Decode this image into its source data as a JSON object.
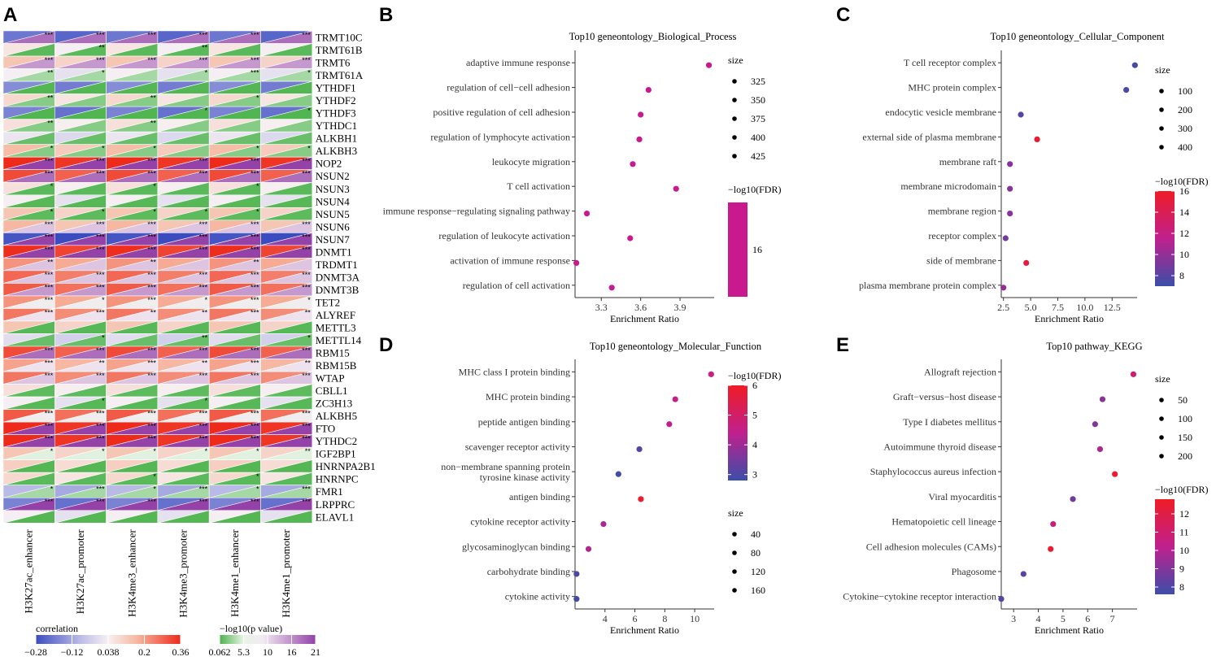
{
  "panels": {
    "A": "A",
    "B": "B",
    "C": "C",
    "D": "D",
    "E": "E"
  },
  "heatmap": {
    "columns": [
      "H3K27ac_enhancer",
      "H3K27ac_promoter",
      "H3K4me3_enhancer",
      "H3K4me3_promoter",
      "H3K4me1_enhancer",
      "H3K4me1_promoter"
    ],
    "genes": [
      "TRMT10C",
      "TRMT61B",
      "TRMT6",
      "TRMT61A",
      "YTHDF1",
      "YTHDF2",
      "YTHDF3",
      "YTHDC1",
      "ALKBH1",
      "ALKBH3",
      "NOP2",
      "NSUN2",
      "NSUN3",
      "NSUN4",
      "NSUN5",
      "NSUN6",
      "NSUN7",
      "DNMT1",
      "TRDMT1",
      "DNMT3A",
      "DNMT3B",
      "TET2",
      "ALYREF",
      "METTL3",
      "METTL14",
      "RBM15",
      "RBM15B",
      "WTAP",
      "CBLL1",
      "ZC3H13",
      "ALKBH5",
      "FTO",
      "YTHDC2",
      "IGF2BP1",
      "HNRNPA2B1",
      "HNRNPC",
      "FMR1",
      "LRPPRC",
      "ELAVL1"
    ],
    "correlation": [
      -0.22,
      0.05,
      0.12,
      0.02,
      -0.18,
      0.08,
      -0.2,
      0.06,
      0.0,
      0.14,
      0.36,
      0.3,
      0.06,
      0.02,
      0.12,
      0.15,
      -0.28,
      0.34,
      0.2,
      0.26,
      0.28,
      0.2,
      0.24,
      0.12,
      -0.02,
      0.3,
      0.18,
      0.24,
      0.06,
      0.02,
      0.28,
      0.36,
      0.36,
      0.12,
      0.1,
      0.08,
      -0.1,
      -0.2,
      0.02
    ],
    "pvalue": [
      18,
      0.5,
      15,
      3,
      0.3,
      2,
      0.2,
      2,
      1,
      2,
      21,
      18,
      0.5,
      0.4,
      0.6,
      12,
      21,
      21,
      12,
      12,
      15,
      8,
      10,
      0.4,
      1,
      18,
      10,
      12,
      0.6,
      0.4,
      8,
      21,
      21,
      5,
      0.3,
      0.5,
      3,
      21,
      0.3
    ],
    "stars": [
      [
        "***",
        "***",
        "***",
        "***",
        "***",
        "***"
      ],
      [
        "",
        "**",
        "",
        "**",
        "",
        ""
      ],
      [
        "***",
        "***",
        "***",
        "***",
        "***",
        "***"
      ],
      [
        "**",
        "*",
        "",
        "*",
        "***",
        "*"
      ],
      [
        "",
        "",
        "",
        "",
        "",
        ""
      ],
      [
        "**",
        "",
        "**",
        "",
        "*",
        ""
      ],
      [
        "",
        "",
        "",
        "*",
        "",
        "*"
      ],
      [
        "**",
        "",
        "**",
        "",
        "",
        ""
      ],
      [
        "",
        "",
        "",
        "",
        "",
        ""
      ],
      [
        "*",
        "*",
        "*",
        "",
        "*",
        "*"
      ],
      [
        "***",
        "***",
        "***",
        "***",
        "***",
        "***"
      ],
      [
        "***",
        "***",
        "***",
        "***",
        "***",
        "***"
      ],
      [
        "*",
        "",
        "*",
        "",
        "*",
        ""
      ],
      [
        "",
        "",
        "",
        "",
        "",
        ""
      ],
      [
        "*",
        "*",
        "*",
        "*",
        "*",
        ""
      ],
      [
        "***",
        "***",
        "***",
        "***",
        "***",
        "***"
      ],
      [
        "***",
        "***",
        "***",
        "***",
        "***",
        "***"
      ],
      [
        "***",
        "***",
        "***",
        "***",
        "***",
        "***"
      ],
      [
        "**",
        "",
        "**",
        "",
        "**",
        ""
      ],
      [
        "***",
        "***",
        "***",
        "***",
        "***",
        "***"
      ],
      [
        "***",
        "***",
        "***",
        "***",
        "***",
        "***"
      ],
      [
        "***",
        "*",
        "***",
        "*",
        "***",
        "*"
      ],
      [
        "***",
        "***",
        "**",
        "**",
        "***",
        "**"
      ],
      [
        "",
        "",
        "",
        "",
        "",
        ""
      ],
      [
        "",
        "*",
        "",
        "**",
        "",
        "*"
      ],
      [
        "***",
        "***",
        "***",
        "***",
        "***",
        "***"
      ],
      [
        "***",
        "**",
        "***",
        "**",
        "***",
        "**"
      ],
      [
        "***",
        "***",
        "***",
        "***",
        "***",
        "***"
      ],
      [
        "",
        "",
        "",
        "",
        "",
        ""
      ],
      [
        "",
        "*",
        "",
        "*",
        "",
        ""
      ],
      [
        "***",
        "***",
        "***",
        "***",
        "***",
        "***"
      ],
      [
        "***",
        "***",
        "***",
        "***",
        "***",
        "***"
      ],
      [
        "***",
        "***",
        "***",
        "***",
        "***",
        "***"
      ],
      [
        "*",
        "*",
        "*",
        "*",
        "*",
        "**"
      ],
      [
        "",
        "",
        "",
        "",
        "",
        ""
      ],
      [
        "",
        "",
        "*",
        "",
        "*",
        ""
      ],
      [
        "*",
        "***",
        "*",
        "***",
        "*",
        "***"
      ],
      [
        "***",
        "***",
        "***",
        "***",
        "***",
        "***"
      ],
      [
        "",
        "",
        "",
        "",
        "",
        ""
      ]
    ],
    "corr_legend": {
      "title": "correlation",
      "ticks": [
        "−0.28",
        "−0.12",
        "0.038",
        "0.2",
        "0.36"
      ]
    },
    "p_legend": {
      "title": "−log10(p value)",
      "ticks": [
        "0.062",
        "5.3",
        "10",
        "16",
        "21"
      ]
    }
  },
  "chart_data": [
    {
      "type": "scatter",
      "title": "Top10 geneontology_Biological_Process",
      "xlabel": "Enrichment Ratio",
      "xlim": [
        3.1,
        4.16
      ],
      "xticks": [
        3.3,
        3.6,
        3.9
      ],
      "xtick_labels": [
        "3.3",
        "3.6",
        "3.9"
      ],
      "categories": [
        "adaptive immune response",
        "regulation of cell−cell adhesion",
        "positive regulation of cell adhesion",
        "regulation of lymphocyte activation",
        "leukocyte migration",
        "T cell activation",
        "immune response−regulating signaling pathway",
        "regulation of leukocyte activation",
        "activation of immune response",
        "regulation of cell activation"
      ],
      "x": [
        4.12,
        3.66,
        3.6,
        3.59,
        3.54,
        3.87,
        3.19,
        3.52,
        3.11,
        3.38
      ],
      "fdr": [
        16.3,
        16.1,
        16.1,
        16.1,
        16.0,
        16.3,
        16.0,
        16.0,
        16.2,
        16.1
      ],
      "size_legend": {
        "title": "size",
        "values": [
          "325",
          "350",
          "375",
          "400",
          "425"
        ]
      },
      "color_legend": {
        "title": "−log10(FDR)",
        "ticks": [
          "16"
        ]
      }
    },
    {
      "type": "scatter",
      "title": "Top10 geneontology_Cellular_Component",
      "xlabel": "Enrichment Ratio",
      "xlim": [
        2.3,
        14.8
      ],
      "xticks": [
        2.5,
        5.0,
        7.5,
        10.0,
        12.5
      ],
      "xtick_labels": [
        "2.5",
        "5.0",
        "7.5",
        "10.0",
        "12.5"
      ],
      "categories": [
        "T cell receptor complex",
        "MHC protein complex",
        "endocytic vesicle membrane",
        "external side of plasma membrane",
        "membrane raft",
        "membrane microdomain",
        "membrane region",
        "receptor complex",
        "side of membrane",
        "plasma membrane protein complex"
      ],
      "x": [
        14.6,
        13.8,
        4.1,
        5.6,
        3.1,
        3.1,
        3.1,
        2.7,
        4.6,
        2.5
      ],
      "fdr": [
        7.5,
        7.5,
        7.8,
        15.5,
        9.5,
        9.5,
        9.5,
        9.0,
        15.0,
        10.0
      ],
      "size_legend": {
        "title": "size",
        "values": [
          "100",
          "200",
          "300",
          "400"
        ]
      },
      "color_legend": {
        "title": "−log10(FDR)",
        "ticks": [
          "16",
          "14",
          "12",
          "10",
          "8"
        ]
      }
    },
    {
      "type": "scatter",
      "title": "Top10 geneontology_Molecular_Function",
      "xlabel": "Enrichment Ratio",
      "xlim": [
        2.0,
        11.3
      ],
      "xticks": [
        4,
        6,
        8,
        10
      ],
      "xtick_labels": [
        "4",
        "6",
        "8",
        "10"
      ],
      "categories": [
        "MHC class I protein binding",
        "MHC protein binding",
        "peptide antigen binding",
        "scavenger receptor activity",
        "non−membrane spanning protein tyrosine kinase activity",
        "antigen binding",
        "cytokine receptor activity",
        "glycosaminoglycan binding",
        "carbohydrate binding",
        "cytokine activity"
      ],
      "x": [
        11.1,
        8.7,
        8.3,
        6.3,
        4.9,
        6.4,
        3.9,
        2.9,
        2.1,
        2.1
      ],
      "fdr": [
        4.6,
        4.5,
        4.4,
        3.1,
        2.9,
        5.9,
        4.1,
        4.2,
        3.0,
        2.9
      ],
      "size_legend": {
        "title": "size",
        "values": [
          "40",
          "80",
          "120",
          "160"
        ]
      },
      "color_legend": {
        "title": "−log10(FDR)",
        "ticks": [
          "6",
          "5",
          "4",
          "3"
        ]
      }
    },
    {
      "type": "scatter",
      "title": "Top10 pathway_KEGG",
      "xlabel": "Enrichment Ratio",
      "xlim": [
        2.5,
        8.0
      ],
      "xticks": [
        3,
        4,
        5,
        6,
        7
      ],
      "xtick_labels": [
        "3",
        "4",
        "5",
        "6",
        "7"
      ],
      "categories": [
        "Allograft rejection",
        "Graft−versus−host disease",
        "Type I diabetes mellitus",
        "Autoimmune thyroid disease",
        "Staphylococcus aureus infection",
        "Viral myocarditis",
        "Hematopoietic cell lineage",
        "Cell adhesion molecules (CAMs)",
        "Phagosome",
        "Cytokine−cytokine receptor interaction"
      ],
      "x": [
        7.85,
        6.6,
        6.3,
        6.5,
        7.1,
        5.4,
        4.6,
        4.5,
        3.4,
        2.5
      ],
      "fdr": [
        11.0,
        9.2,
        9.0,
        9.8,
        12.5,
        8.6,
        10.6,
        12.6,
        8.2,
        8.0
      ],
      "size_legend": {
        "title": "size",
        "values": [
          "50",
          "100",
          "150",
          "200"
        ]
      },
      "color_legend": {
        "title": "−log10(FDR)",
        "ticks": [
          "12",
          "11",
          "10",
          "9",
          "8"
        ]
      }
    }
  ]
}
